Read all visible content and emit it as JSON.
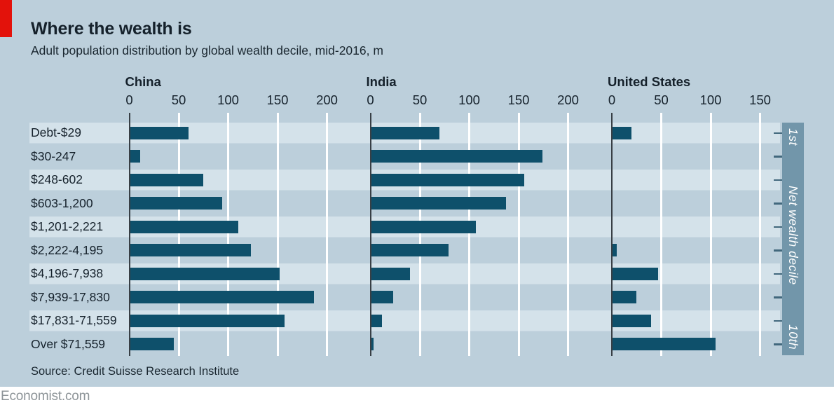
{
  "header": {
    "title": "Where the wealth is",
    "subtitle": "Adult population distribution by global wealth decile, mid-2016, m"
  },
  "source": "Source: Credit Suisse Research Institute",
  "footer": "Economist.com",
  "decile_axis": {
    "top_label": "1st",
    "middle_label": "Net wealth decile",
    "bottom_label": "10th"
  },
  "colors": {
    "background": "#bccfdb",
    "row_stripe": "#d4e2ea",
    "bar": "#0e506b",
    "accent_red": "#e3120b",
    "decile_band": "#7296aa",
    "text": "#15212b",
    "gridline": "#ffffff",
    "footer_gray": "#8d9498"
  },
  "chart_data": {
    "type": "bar",
    "orientation": "horizontal",
    "title": "Where the wealth is",
    "subtitle": "Adult population distribution by global wealth decile, mid-2016, m",
    "unit": "millions of adults",
    "value_axis_range": [
      0,
      230
    ],
    "grid": true,
    "categories": [
      "Debt-$29",
      "$30-247",
      "$248-602",
      "$603-1,200",
      "$1,201-2,221",
      "$2,222-4,195",
      "$4,196-7,938",
      "$7,939-17,830",
      "$17,831-71,559",
      "Over $71,559"
    ],
    "category_axis_label_right": "Net wealth decile, 1st at top to 10th at bottom",
    "series": [
      {
        "name": "China",
        "xticks": [
          0,
          50,
          100,
          150,
          200
        ],
        "values": [
          60,
          11,
          75,
          94,
          110,
          123,
          152,
          187,
          157,
          45
        ]
      },
      {
        "name": "India",
        "xticks": [
          0,
          50,
          100,
          150,
          200
        ],
        "values": [
          70,
          174,
          156,
          137,
          107,
          79,
          40,
          23,
          12,
          3
        ]
      },
      {
        "name": "United States",
        "xticks": [
          0,
          50,
          100,
          150
        ],
        "values": [
          20,
          0,
          0,
          0,
          0,
          5,
          47,
          25,
          40,
          105
        ]
      }
    ]
  }
}
